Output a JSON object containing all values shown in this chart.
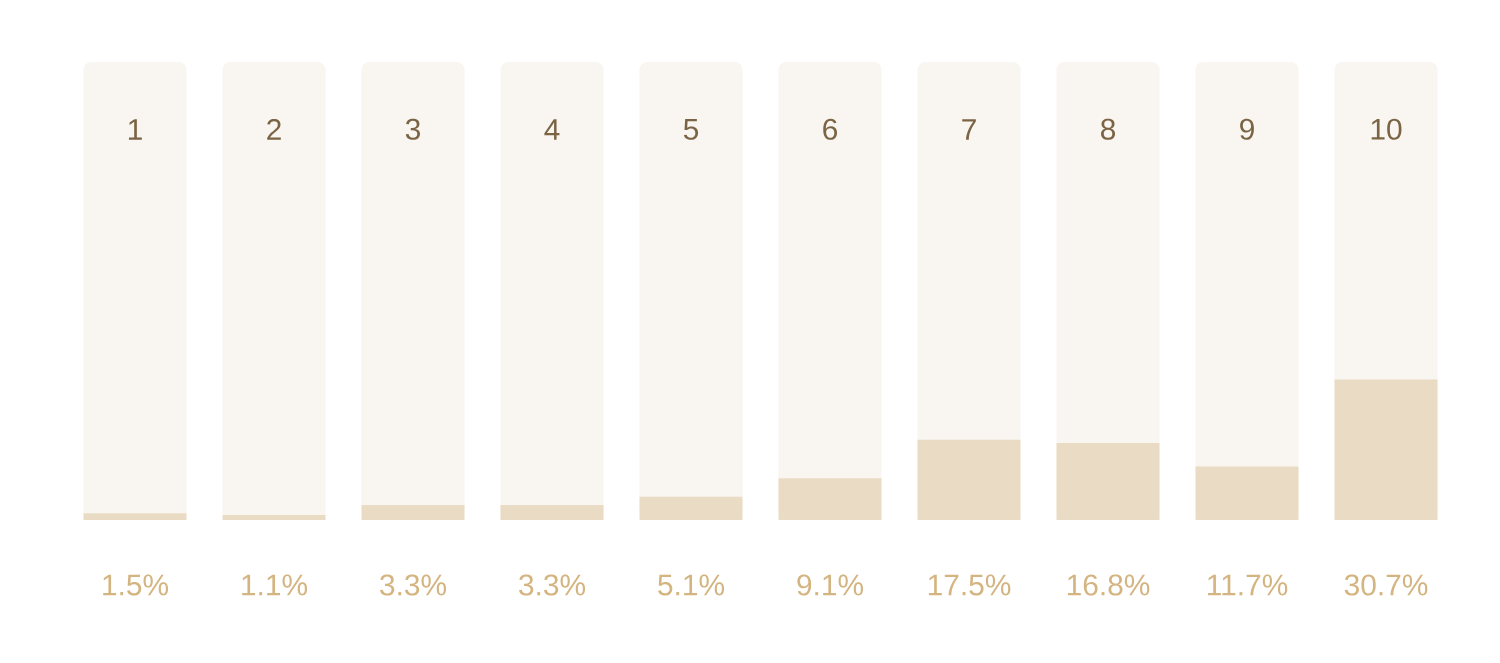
{
  "chart_data": {
    "type": "bar",
    "categories": [
      "1",
      "2",
      "3",
      "4",
      "5",
      "6",
      "7",
      "8",
      "9",
      "10"
    ],
    "values": [
      1.5,
      1.1,
      3.3,
      3.3,
      5.1,
      9.1,
      17.5,
      16.8,
      11.7,
      30.7
    ],
    "value_labels": [
      "1.5%",
      "1.1%",
      "3.3%",
      "3.3%",
      "5.1%",
      "9.1%",
      "17.5%",
      "16.8%",
      "11.7%",
      "30.7%"
    ],
    "color": "#eadcc4",
    "ylim": [
      0,
      100
    ],
    "tick_labels": "x"
  }
}
